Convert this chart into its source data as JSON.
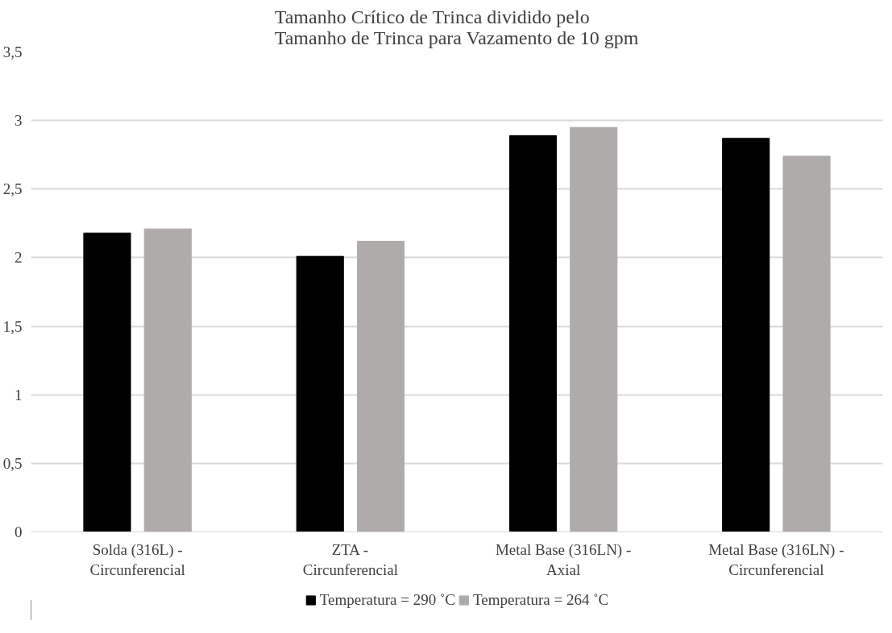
{
  "chart_data": {
    "type": "bar",
    "title": "Tamanho Crítico de Trinca dividido pelo\nTamanho de Trinca para Vazamento de 10 gpm",
    "categories": [
      "Solda (316L) -\nCircunferencial",
      "ZTA -\nCircunferencial",
      "Metal Base (316LN) -\nAxial",
      "Metal Base (316LN) -\nCircunferencial"
    ],
    "series": [
      {
        "name": "Temperatura = 290 ˚C",
        "color": "#000000",
        "values": [
          2.18,
          2.01,
          2.89,
          2.87
        ]
      },
      {
        "name": "Temperatura = 264 ˚C",
        "color": "#afabab",
        "values": [
          2.21,
          2.12,
          2.95,
          2.74
        ]
      }
    ],
    "ylim": [
      0,
      3.5
    ],
    "yticks": [
      0,
      {
        "value": 0.5,
        "label": "0,5"
      },
      1,
      {
        "value": 1.5,
        "label": "1,5"
      },
      2,
      {
        "value": 2.5,
        "label": "2,5"
      },
      3,
      {
        "value": 3.5,
        "label": "3,5"
      }
    ],
    "grid": "y",
    "legend": "bottom"
  }
}
